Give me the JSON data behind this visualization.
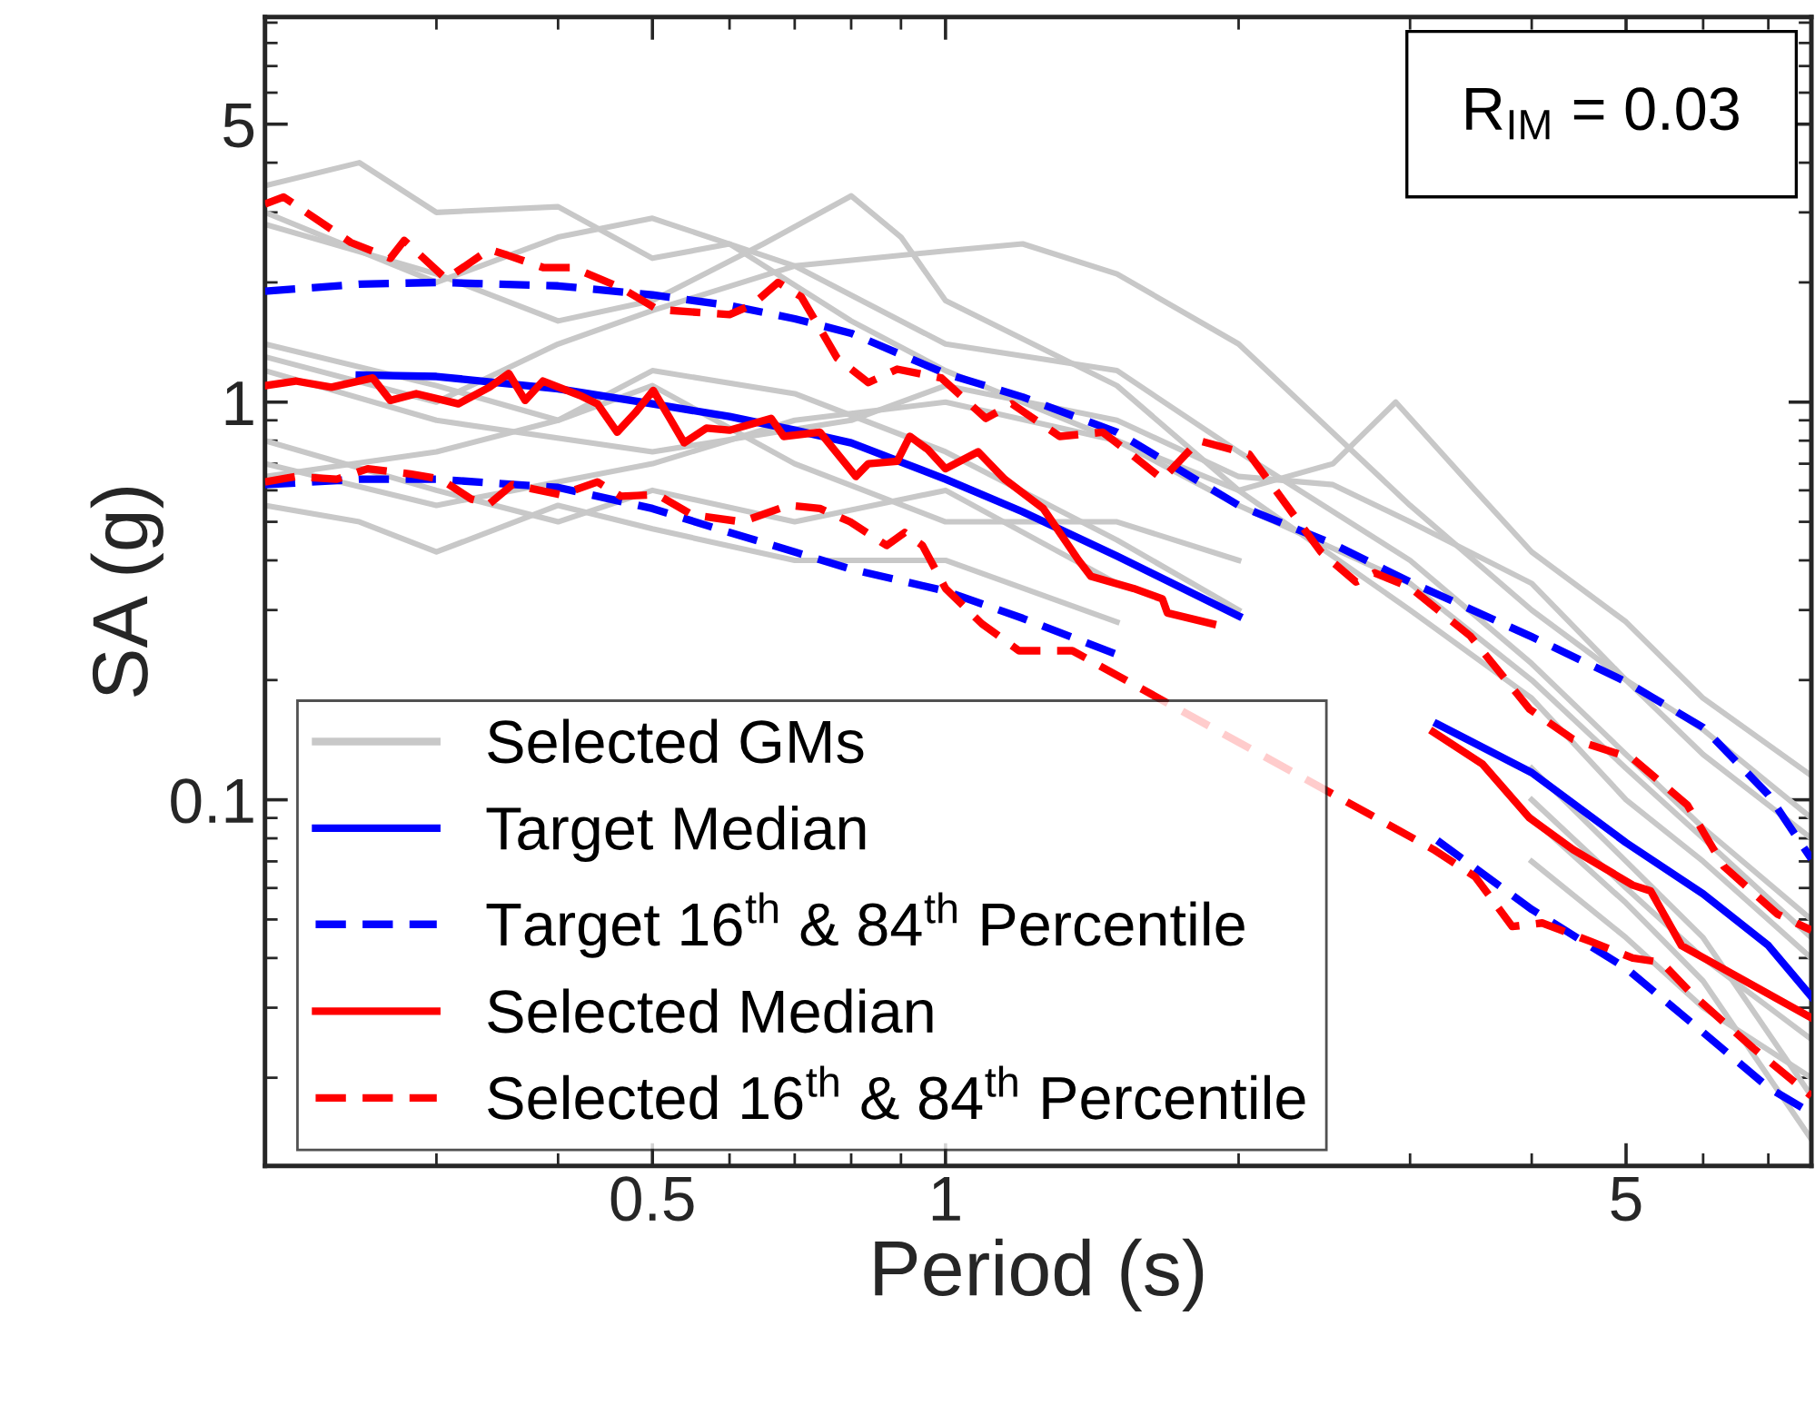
{
  "chart_data": {
    "type": "line",
    "xlabel": "Period (s)",
    "ylabel": "SA (g)",
    "log": "xy",
    "xlim": [
      0.2,
      7.75
    ],
    "ylim": [
      0.012,
      9.3
    ],
    "xticks": [
      0.5,
      1,
      5
    ],
    "yticks": [
      0.1,
      1,
      5
    ],
    "grid": false,
    "legend": "bottom left",
    "marker": "none",
    "annotations": [
      "R$_{IM}$ = 0.03"
    ],
    "series": [
      {
        "name": "Selected GMs",
        "color": "#c8c8c8",
        "line_style": "solid",
        "x": [
          0.2,
          0.25,
          0.3,
          0.4,
          0.5,
          0.6,
          0.8,
          1,
          1.5,
          2,
          3,
          4,
          5,
          6,
          7.75
        ],
        "values": [
          3.5,
          4.0,
          3.0,
          3.1,
          2.3,
          2.5,
          1.6,
          1.2,
          0.8,
          0.55,
          0.35,
          0.2,
          0.12,
          0.08,
          0.045
        ]
      },
      {
        "color": "#c8c8c8",
        "line_style": "solid",
        "x": [
          0.2,
          0.3,
          0.4,
          0.5,
          0.65,
          0.8,
          0.9,
          1,
          1.5,
          2,
          3,
          4,
          5,
          6,
          7.75
        ],
        "values": [
          2.8,
          2.1,
          1.6,
          1.8,
          2.5,
          3.3,
          2.6,
          1.8,
          1.1,
          0.6,
          0.3,
          0.18,
          0.1,
          0.07,
          0.04
        ]
      },
      {
        "color": "#c8c8c8",
        "line_style": "solid",
        "x": [
          0.2,
          0.3,
          0.4,
          0.5,
          0.7,
          1,
          1.2,
          1.5,
          2,
          3,
          4,
          5,
          6,
          7.75
        ],
        "values": [
          1.3,
          1.0,
          1.4,
          1.7,
          2.2,
          2.4,
          2.5,
          2.1,
          1.4,
          0.55,
          0.3,
          0.2,
          0.13,
          0.08
        ]
      },
      {
        "color": "#c8c8c8",
        "line_style": "solid",
        "x": [
          0.2,
          0.3,
          0.5,
          0.7,
          1,
          1.5,
          2,
          2.5,
          2.9,
          3.5,
          4,
          5,
          6,
          7.75
        ],
        "values": [
          0.7,
          0.55,
          0.7,
          0.9,
          1.0,
          0.8,
          0.6,
          0.7,
          1.0,
          0.6,
          0.42,
          0.28,
          0.18,
          0.115
        ]
      },
      {
        "color": "#c8c8c8",
        "line_style": "solid",
        "x": [
          0.2,
          0.3,
          0.5,
          0.8,
          1,
          1.5,
          2,
          2.5,
          3,
          4,
          5,
          6,
          7.75
        ],
        "values": [
          1.2,
          0.9,
          0.75,
          0.9,
          1.1,
          0.9,
          0.65,
          0.62,
          0.5,
          0.35,
          0.2,
          0.15,
          0.09
        ]
      },
      {
        "color": "#c8c8c8",
        "line_style": "solid",
        "x": [
          0.2,
          0.25,
          0.3,
          0.4,
          0.5,
          0.7,
          1,
          1.5,
          2,
          3,
          4,
          5,
          6,
          7.75
        ],
        "values": [
          0.55,
          0.5,
          0.42,
          0.55,
          0.48,
          0.4,
          0.4,
          0.28,
          null,
          null,
          0.07,
          0.045,
          0.03,
          0.02
        ]
      },
      {
        "color": "#c8c8c8",
        "line_style": "solid",
        "x": [
          0.2,
          0.3,
          0.4,
          0.5,
          0.7,
          1,
          1.5,
          2,
          3,
          4,
          5,
          6,
          7.75
        ],
        "values": [
          0.65,
          0.75,
          0.9,
          1.2,
          1.05,
          0.75,
          0.45,
          0.3,
          null,
          0.1,
          0.06,
          0.04,
          0.025
        ]
      },
      {
        "color": "#c8c8c8",
        "line_style": "solid",
        "x": [
          0.2,
          0.3,
          0.4,
          0.5,
          0.7,
          1,
          1.5,
          2,
          3,
          4,
          5,
          6,
          7.75
        ],
        "values": [
          1.4,
          1.1,
          0.9,
          1.1,
          0.7,
          0.5,
          0.5,
          0.4,
          null,
          0.12,
          0.07,
          0.045,
          0.018
        ]
      },
      {
        "color": "#c8c8c8",
        "line_style": "solid",
        "x": [
          0.2,
          0.3,
          0.4,
          0.5,
          0.7,
          1,
          1.5,
          2,
          3,
          4,
          5,
          6,
          7.75
        ],
        "values": [
          0.8,
          0.6,
          0.5,
          0.6,
          0.5,
          0.6,
          0.35,
          null,
          null,
          0.09,
          0.055,
          0.035,
          0.014
        ]
      },
      {
        "color": "#c8c8c8",
        "line_style": "solid",
        "x": [
          0.2,
          0.3,
          0.4,
          0.5,
          0.7,
          1,
          1.5,
          2,
          3,
          4,
          5,
          6,
          7.75
        ],
        "values": [
          3.0,
          2.0,
          2.6,
          2.9,
          2.2,
          1.4,
          1.2,
          0.75,
          0.4,
          0.22,
          0.13,
          0.085,
          0.05
        ]
      },
      {
        "name": "Target Median",
        "color": "#0000ff",
        "line_style": "solid",
        "x": [
          0.25,
          0.3,
          0.4,
          0.5,
          0.6,
          0.7,
          0.8,
          1,
          1.2,
          1.5,
          2,
          2.5,
          3,
          3.2,
          4,
          5,
          6,
          7,
          7.75
        ],
        "values": [
          1.17,
          1.16,
          1.08,
          0.99,
          0.92,
          0.85,
          0.79,
          0.64,
          0.53,
          0.41,
          0.29,
          null,
          null,
          0.155,
          0.117,
          0.078,
          0.058,
          0.043,
          0.032
        ]
      },
      {
        "name": "Target 16$^{th}$ & 84$^{th}$ Percentile",
        "color": "#0000ff",
        "line_style": "dashed",
        "x": [
          0.2,
          0.25,
          0.3,
          0.4,
          0.5,
          0.6,
          0.7,
          0.8,
          1,
          1.2,
          1.5,
          2,
          2.5,
          3,
          4,
          5,
          6,
          7,
          7.75
        ],
        "values": [
          1.9,
          1.98,
          2.0,
          1.96,
          1.86,
          1.75,
          1.62,
          1.49,
          1.18,
          1.03,
          0.84,
          0.55,
          0.44,
          0.353,
          0.257,
          0.198,
          0.152,
          0.103,
          0.071
        ]
      },
      {
        "color": "#0000ff",
        "line_style": "dashed",
        "x": [
          0.2,
          0.25,
          0.3,
          0.4,
          0.5,
          0.6,
          0.7,
          0.8,
          1,
          1.2,
          1.5,
          2,
          2.5,
          3,
          3.2,
          4,
          5,
          6,
          7,
          7.75
        ],
        "values": [
          0.62,
          0.64,
          0.64,
          0.61,
          0.54,
          0.47,
          0.42,
          0.38,
          0.335,
          0.286,
          0.232,
          null,
          null,
          null,
          0.079,
          0.053,
          0.0377,
          0.026,
          0.0189,
          0.0163
        ]
      },
      {
        "name": "Selected Median",
        "color": "#ff0000",
        "line_style": "solid",
        "x": [
          0.2,
          0.215,
          0.234,
          0.258,
          0.269,
          0.286,
          0.316,
          0.34,
          0.356,
          0.37,
          0.386,
          0.421,
          0.439,
          0.46,
          0.48,
          0.501,
          0.521,
          0.539,
          0.568,
          0.6,
          0.662,
          0.682,
          0.743,
          0.809,
          0.833,
          0.892,
          0.919,
          0.959,
          1.0,
          1.08,
          1.15,
          1.26,
          1.37,
          1.41,
          1.56,
          1.67,
          1.69,
          1.88,
          2.1,
          3.17,
          3.56,
          3.98,
          4.41,
          5.08,
          5.3,
          5.7,
          7.75
        ],
        "values": [
          1.1,
          1.13,
          1.09,
          1.15,
          1.01,
          1.05,
          0.99,
          1.09,
          1.18,
          1.01,
          1.13,
          1.04,
          0.99,
          0.84,
          0.94,
          1.07,
          0.91,
          0.79,
          0.86,
          0.85,
          0.91,
          0.82,
          0.84,
          0.65,
          0.7,
          0.71,
          0.82,
          0.76,
          0.68,
          0.75,
          0.64,
          0.54,
          0.4,
          0.365,
          0.34,
          0.32,
          0.295,
          0.277,
          null,
          0.148,
          0.123,
          0.09,
          0.075,
          0.061,
          0.059,
          0.043,
          0.0283
        ]
      },
      {
        "name": "Selected 16$^{th}$ & 84$^{th}$ Percentile",
        "color": "#ff0000",
        "line_style": "dashed",
        "x": [
          0.2,
          0.209,
          0.245,
          0.269,
          0.278,
          0.307,
          0.34,
          0.355,
          0.386,
          0.414,
          0.464,
          0.506,
          0.6,
          0.634,
          0.673,
          0.711,
          0.774,
          0.833,
          0.892,
          0.99,
          1.1,
          1.17,
          1.31,
          1.45,
          1.53,
          1.67,
          1.82,
          2.05,
          2.43,
          2.64,
          2.76,
          3.0,
          3.46,
          3.98,
          4.41,
          5.08,
          5.78,
          6.3,
          7.15,
          7.75
        ],
        "values": [
          3.15,
          3.28,
          2.52,
          2.3,
          2.55,
          2.04,
          2.42,
          2.34,
          2.18,
          2.18,
          1.94,
          1.71,
          1.66,
          1.76,
          2.0,
          1.84,
          1.29,
          1.12,
          1.21,
          1.15,
          0.91,
          0.99,
          0.82,
          0.84,
          0.76,
          0.64,
          0.8,
          0.74,
          0.42,
          0.353,
          0.372,
          0.342,
          0.258,
          0.169,
          0.142,
          0.127,
          0.097,
          0.068,
          0.0516,
          0.047
        ]
      },
      {
        "color": "#ff0000",
        "line_style": "dashed",
        "x": [
          0.2,
          0.215,
          0.237,
          0.255,
          0.282,
          0.303,
          0.326,
          0.34,
          0.359,
          0.403,
          0.439,
          0.464,
          0.506,
          0.55,
          0.618,
          0.69,
          0.743,
          0.798,
          0.87,
          0.908,
          0.947,
          1.0,
          1.09,
          1.19,
          1.35,
          3.17,
          3.5,
          3.82,
          4.1,
          4.6,
          5.08,
          5.44,
          5.84,
          6.76,
          7.75
        ],
        "values": [
          0.63,
          0.65,
          0.64,
          0.68,
          0.66,
          0.64,
          0.57,
          0.555,
          0.62,
          0.585,
          0.63,
          0.58,
          0.585,
          0.52,
          0.5,
          0.55,
          0.54,
          0.5,
          0.436,
          0.47,
          0.436,
          0.34,
          0.277,
          0.237,
          0.237,
          0.075,
          0.064,
          0.048,
          0.049,
          0.044,
          0.04,
          0.039,
          0.0325,
          0.0237,
          0.018
        ]
      }
    ]
  }
}
